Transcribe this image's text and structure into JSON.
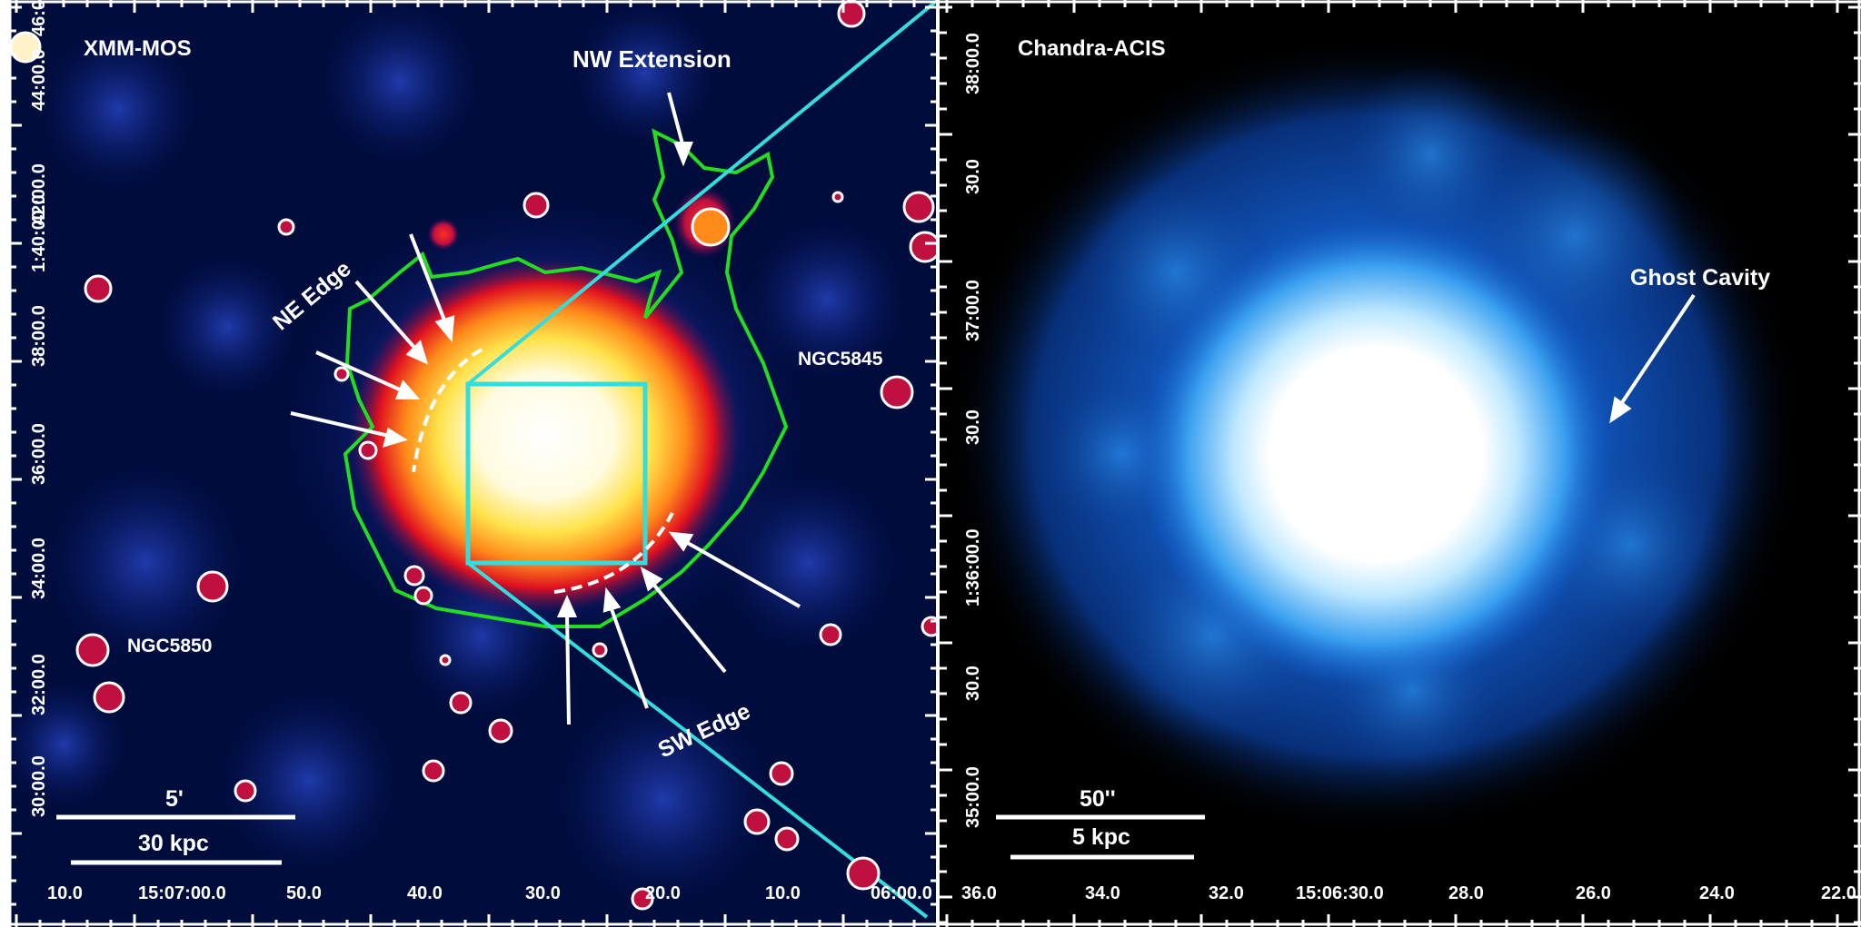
{
  "left_panel": {
    "title": "XMM-MOS",
    "labels": {
      "nw_extension": "NW Extension",
      "ne_edge": "NE Edge",
      "sw_edge": "SW Edge",
      "ngc5845": "NGC5845",
      "ngc5850": "NGC5850"
    },
    "scalebar": {
      "arcmin": "5'",
      "kpc": "30 kpc"
    },
    "x_ticks": [
      "10.0",
      "15:07:00.0",
      "50.0",
      "40.0",
      "30.0",
      "20.0",
      "10.0",
      "06:00.0"
    ],
    "y_ticks": [
      "30:00.0",
      "32:00.0",
      "34:00.0",
      "36:00.0",
      "38:00.0",
      "1:40:00.0",
      "42:00.0",
      "44:00.0",
      "46:0"
    ],
    "colors": {
      "contour": "#22dd22",
      "box": "#33dddd",
      "point_source_circle": "#ffffff"
    }
  },
  "right_panel": {
    "title": "Chandra-ACIS",
    "labels": {
      "ghost_cavity": "Ghost Cavity"
    },
    "scalebar": {
      "arcsec": "50''",
      "kpc": "5 kpc"
    },
    "x_ticks": [
      "36.0",
      "34.0",
      "32.0",
      "15:06:30.0",
      "28.0",
      "26.0",
      "24.0",
      "22.0"
    ],
    "y_ticks": [
      "35:00.0",
      "30.0",
      "1:36:00.0",
      "30.0",
      "37:00.0",
      "30.0",
      "38:00.0"
    ]
  }
}
